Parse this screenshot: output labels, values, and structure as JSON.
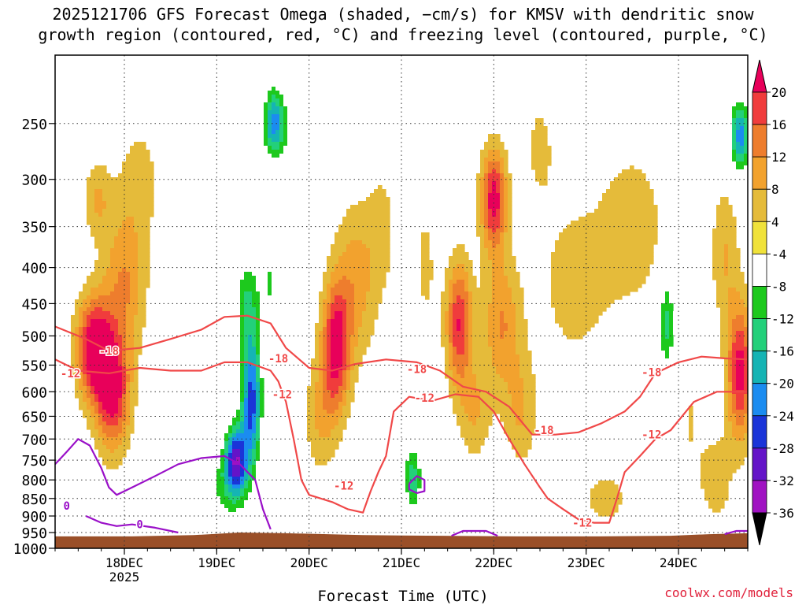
{
  "chart_data": {
    "type": "heatmap",
    "title_line1": "2025121706 GFS Forecast Omega (shaded, −cm/s) for KMSV with dendritic snow",
    "title_line2": "growth region (contoured, red, °C) and freezing level (contoured, purple, °C)",
    "xlabel": "Forecast Time (UTC)",
    "ylabel": "",
    "y_axis": {
      "scale": "log",
      "inverted": true,
      "range": [
        200,
        1000
      ],
      "ticks": [
        250,
        300,
        350,
        400,
        450,
        500,
        550,
        600,
        650,
        700,
        750,
        800,
        850,
        900,
        950,
        1000
      ]
    },
    "x_axis": {
      "range_hours": [
        0,
        180
      ],
      "ticks": [
        {
          "hour": 18,
          "label": "18DEC",
          "sublabel": "2025"
        },
        {
          "hour": 42,
          "label": "19DEC"
        },
        {
          "hour": 66,
          "label": "20DEC"
        },
        {
          "hour": 90,
          "label": "21DEC"
        },
        {
          "hour": 114,
          "label": "22DEC"
        },
        {
          "hour": 138,
          "label": "23DEC"
        },
        {
          "hour": 162,
          "label": "24DEC"
        }
      ]
    },
    "grid": "dotted",
    "colorbar": {
      "levels": [
        20,
        16,
        12,
        8,
        4,
        -4,
        -8,
        -12,
        -16,
        -20,
        -24,
        -28,
        -32,
        -36
      ],
      "colors": [
        "#e8005a",
        "#f03c3c",
        "#ee7d2d",
        "#f2a22e",
        "#e5bb3a",
        "#f0e23a",
        "#ffffff",
        "#1dc91d",
        "#23d07a",
        "#15b4b4",
        "#1b8cf0",
        "#1a34d8",
        "#6414c8",
        "#a012c2",
        "#aaaaaa",
        "#000000"
      ]
    },
    "omega_blobs": [
      {
        "hour": 10,
        "p": 520,
        "dh": 3.2,
        "dp": 2.6,
        "v": 24
      },
      {
        "hour": 15,
        "p": 600,
        "dh": 3.2,
        "dp": 3.0,
        "v": 22
      },
      {
        "hour": 18,
        "p": 420,
        "dh": 4.0,
        "dp": 3.6,
        "v": 12
      },
      {
        "hour": 11,
        "p": 320,
        "dh": 2.6,
        "dp": 2.0,
        "v": 8
      },
      {
        "hour": 22,
        "p": 300,
        "dh": 4.0,
        "dp": 3.0,
        "v": 6
      },
      {
        "hour": 47,
        "p": 750,
        "dh": 2.0,
        "dp": 1.8,
        "v": -28
      },
      {
        "hour": 51,
        "p": 620,
        "dh": 1.8,
        "dp": 3.2,
        "v": -26
      },
      {
        "hour": 50,
        "p": 450,
        "dh": 2.2,
        "dp": 2.6,
        "v": -12
      },
      {
        "hour": 44,
        "p": 820,
        "dh": 4.5,
        "dp": 2.0,
        "v": -8
      },
      {
        "hour": 40,
        "p": 400,
        "dh": 3.5,
        "dp": 4.0,
        "v": 4
      },
      {
        "hour": 57,
        "p": 250,
        "dh": 2.0,
        "dp": 1.8,
        "v": -22
      },
      {
        "hour": 56,
        "p": 420,
        "dh": 2.0,
        "dp": 3.0,
        "v": -8
      },
      {
        "hour": 63,
        "p": 270,
        "dh": 2.5,
        "dp": 3.0,
        "v": -6
      },
      {
        "hour": 73,
        "p": 520,
        "dh": 2.6,
        "dp": 3.2,
        "v": 22
      },
      {
        "hour": 78,
        "p": 420,
        "dh": 4.0,
        "dp": 4.0,
        "v": 10
      },
      {
        "hour": 69,
        "p": 650,
        "dh": 3.0,
        "dp": 3.0,
        "v": 8
      },
      {
        "hour": 85,
        "p": 350,
        "dh": 3.0,
        "dp": 3.5,
        "v": 5
      },
      {
        "hour": 93,
        "p": 800,
        "dh": 1.6,
        "dp": 1.6,
        "v": -14
      },
      {
        "hour": 92,
        "p": 560,
        "dh": 2.0,
        "dp": 4.0,
        "v": -6
      },
      {
        "hour": 96,
        "p": 400,
        "dh": 2.5,
        "dp": 4.0,
        "v": 5
      },
      {
        "hour": 105,
        "p": 480,
        "dh": 2.4,
        "dp": 3.2,
        "v": 20
      },
      {
        "hour": 114,
        "p": 320,
        "dh": 2.4,
        "dp": 2.6,
        "v": 22
      },
      {
        "hour": 116,
        "p": 480,
        "dh": 3.5,
        "dp": 3.4,
        "v": 12
      },
      {
        "hour": 109,
        "p": 640,
        "dh": 3.0,
        "dp": 2.5,
        "v": 8
      },
      {
        "hour": 121,
        "p": 640,
        "dh": 3.0,
        "dp": 3.0,
        "v": 8
      },
      {
        "hour": 118,
        "p": 860,
        "dh": 2.0,
        "dp": 1.6,
        "v": -8
      },
      {
        "hour": 135,
        "p": 420,
        "dh": 7.0,
        "dp": 4.5,
        "v": 6
      },
      {
        "hour": 150,
        "p": 350,
        "dh": 6.0,
        "dp": 4.0,
        "v": 7
      },
      {
        "hour": 143,
        "p": 850,
        "dh": 6.0,
        "dp": 2.0,
        "v": 5
      },
      {
        "hour": 159,
        "p": 480,
        "dh": 1.5,
        "dp": 2.5,
        "v": -14
      },
      {
        "hour": 165,
        "p": 650,
        "dh": 3.0,
        "dp": 5.0,
        "v": 4
      },
      {
        "hour": 178,
        "p": 560,
        "dh": 2.4,
        "dp": 3.5,
        "v": 22
      },
      {
        "hour": 174,
        "p": 380,
        "dh": 2.5,
        "dp": 3.5,
        "v": 8
      },
      {
        "hour": 178,
        "p": 260,
        "dh": 1.8,
        "dp": 1.8,
        "v": -22
      },
      {
        "hour": 172,
        "p": 800,
        "dh": 3.0,
        "dp": 2.5,
        "v": 6
      },
      {
        "hour": 32,
        "p": 250,
        "dh": 3.0,
        "dp": 2.5,
        "v": -6
      },
      {
        "hour": 3,
        "p": 900,
        "dh": 3.0,
        "dp": 1.4,
        "v": -6
      },
      {
        "hour": 100,
        "p": 240,
        "dh": 3.0,
        "dp": 2.5,
        "v": -5
      },
      {
        "hour": 140,
        "p": 230,
        "dh": 4.0,
        "dp": 2.0,
        "v": -5
      },
      {
        "hour": 126,
        "p": 270,
        "dh": 3.0,
        "dp": 3.0,
        "v": 5
      }
    ],
    "dgz_contours": [
      {
        "label": "-18",
        "label_positions": [
          {
            "hour": 14,
            "p": 525
          },
          {
            "hour": 58,
            "p": 538
          },
          {
            "hour": 94,
            "p": 557
          },
          {
            "hour": 127,
            "p": 680
          },
          {
            "hour": 155,
            "p": 563
          }
        ],
        "points": [
          [
            0,
            485
          ],
          [
            8,
            505
          ],
          [
            14,
            525
          ],
          [
            22,
            520
          ],
          [
            30,
            505
          ],
          [
            38,
            490
          ],
          [
            44,
            470
          ],
          [
            50,
            468
          ],
          [
            56,
            480
          ],
          [
            60,
            520
          ],
          [
            66,
            555
          ],
          [
            72,
            560
          ],
          [
            78,
            548
          ],
          [
            86,
            540
          ],
          [
            94,
            545
          ],
          [
            100,
            560
          ],
          [
            106,
            590
          ],
          [
            112,
            600
          ],
          [
            118,
            630
          ],
          [
            124,
            690
          ],
          [
            130,
            690
          ],
          [
            136,
            685
          ],
          [
            142,
            665
          ],
          [
            148,
            640
          ],
          [
            152,
            610
          ],
          [
            156,
            565
          ],
          [
            162,
            545
          ],
          [
            168,
            535
          ],
          [
            174,
            538
          ],
          [
            180,
            540
          ]
        ]
      },
      {
        "label": "-12",
        "label_positions": [
          {
            "hour": 4,
            "p": 565
          },
          {
            "hour": 59,
            "p": 605
          },
          {
            "hour": 96,
            "p": 612
          },
          {
            "hour": 75,
            "p": 815
          },
          {
            "hour": 137,
            "p": 920
          },
          {
            "hour": 155,
            "p": 690
          }
        ],
        "points": [
          [
            0,
            540
          ],
          [
            6,
            560
          ],
          [
            14,
            565
          ],
          [
            22,
            555
          ],
          [
            30,
            560
          ],
          [
            38,
            560
          ],
          [
            44,
            545
          ],
          [
            50,
            545
          ],
          [
            56,
            560
          ],
          [
            58,
            580
          ],
          [
            60,
            620
          ],
          [
            62,
            700
          ],
          [
            64,
            800
          ],
          [
            66,
            840
          ],
          [
            72,
            860
          ],
          [
            76,
            880
          ],
          [
            80,
            890
          ],
          [
            82,
            830
          ],
          [
            84,
            780
          ],
          [
            86,
            740
          ],
          [
            88,
            640
          ],
          [
            92,
            610
          ],
          [
            98,
            618
          ],
          [
            104,
            605
          ],
          [
            110,
            610
          ],
          [
            114,
            640
          ],
          [
            118,
            700
          ],
          [
            122,
            760
          ],
          [
            126,
            820
          ],
          [
            128,
            850
          ],
          [
            132,
            880
          ],
          [
            136,
            910
          ],
          [
            140,
            920
          ],
          [
            144,
            920
          ],
          [
            146,
            850
          ],
          [
            148,
            780
          ],
          [
            152,
            740
          ],
          [
            156,
            700
          ],
          [
            160,
            680
          ],
          [
            166,
            620
          ],
          [
            172,
            600
          ],
          [
            180,
            600
          ]
        ]
      }
    ],
    "freezing_contours": [
      {
        "label": "0",
        "label_positions": [
          {
            "hour": 3,
            "p": 870
          }
        ],
        "points": [
          [
            0,
            760
          ],
          [
            3,
            730
          ],
          [
            6,
            700
          ],
          [
            9,
            715
          ],
          [
            12,
            770
          ],
          [
            14,
            820
          ],
          [
            16,
            840
          ],
          [
            20,
            820
          ],
          [
            26,
            790
          ],
          [
            32,
            760
          ],
          [
            38,
            745
          ],
          [
            44,
            740
          ],
          [
            48,
            760
          ],
          [
            52,
            800
          ],
          [
            54,
            880
          ],
          [
            56,
            940
          ]
        ]
      },
      {
        "label": "0",
        "label_positions": [
          {
            "hour": 22,
            "p": 925
          }
        ],
        "points": [
          [
            8,
            900
          ],
          [
            12,
            920
          ],
          [
            16,
            930
          ],
          [
            20,
            925
          ],
          [
            26,
            935
          ],
          [
            32,
            950
          ]
        ]
      },
      {
        "label": "0",
        "label_positions": [],
        "points": [
          [
            92,
            810
          ],
          [
            94,
            790
          ],
          [
            96,
            800
          ],
          [
            96,
            830
          ],
          [
            94,
            835
          ],
          [
            92,
            825
          ],
          [
            92,
            810
          ]
        ]
      },
      {
        "label": "0",
        "label_positions": [],
        "points": [
          [
            103,
            960
          ],
          [
            106,
            945
          ],
          [
            112,
            945
          ],
          [
            115,
            960
          ]
        ]
      },
      {
        "label": "0",
        "label_positions": [],
        "points": [
          [
            174,
            955
          ],
          [
            177,
            945
          ],
          [
            180,
            945
          ]
        ]
      }
    ],
    "surface_pressure": [
      [
        0,
        962
      ],
      [
        20,
        962
      ],
      [
        36,
        958
      ],
      [
        48,
        950
      ],
      [
        60,
        952
      ],
      [
        80,
        958
      ],
      [
        100,
        960
      ],
      [
        120,
        962
      ],
      [
        140,
        962
      ],
      [
        160,
        960
      ],
      [
        170,
        955
      ],
      [
        180,
        952
      ]
    ],
    "credit": "coolwx.com/models"
  }
}
